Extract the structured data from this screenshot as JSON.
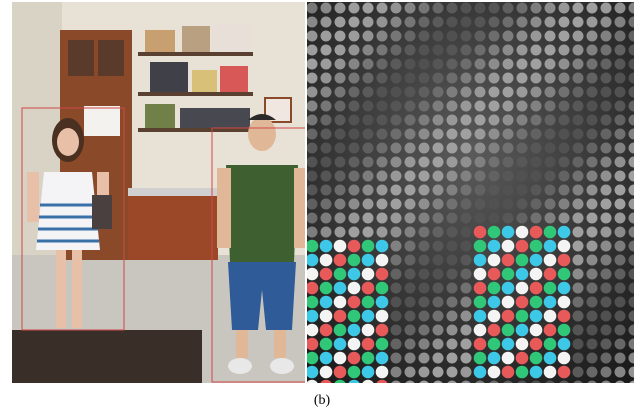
{
  "figure": {
    "caption": "(b)"
  }
}
